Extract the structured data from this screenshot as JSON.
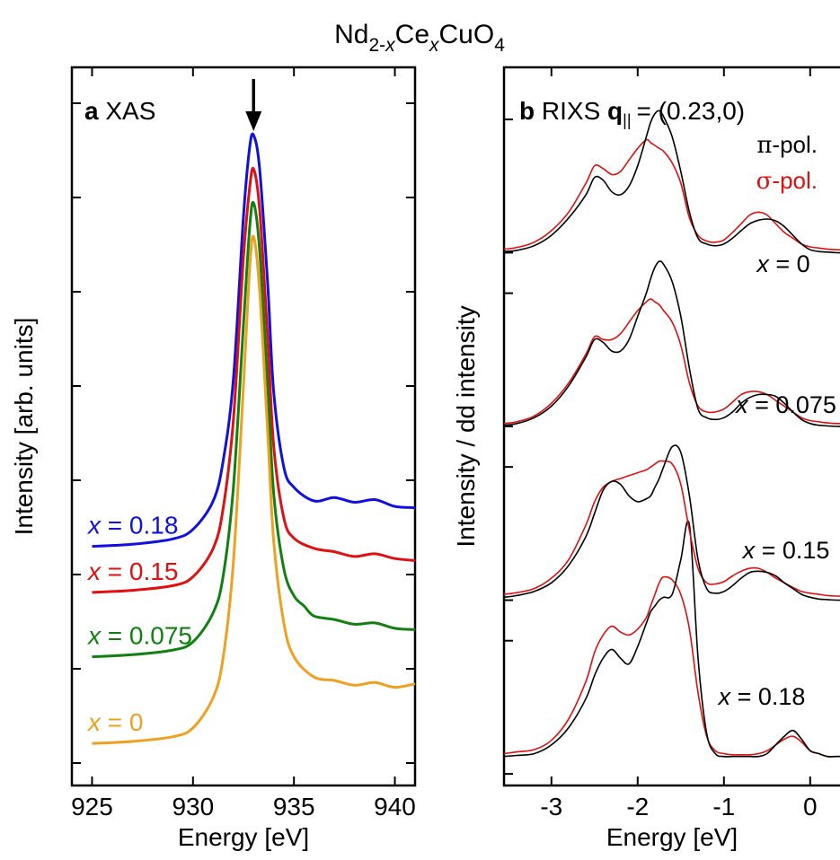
{
  "figure": {
    "title": {
      "base1": "Nd",
      "sub1": "2-",
      "subx": "x",
      "base2": "Ce",
      "sub2": "x",
      "base3": "CuO",
      "sub3": "4"
    }
  },
  "chart_data": [
    {
      "type": "line",
      "panel_letter": "a",
      "panel_title": "XAS",
      "xlabel": "Energy [eV]",
      "ylabel": "Intensity [arb. units]",
      "xlim": [
        924,
        941
      ],
      "ylim": [
        -0.6,
        10
      ],
      "xticks": [
        "925",
        "930",
        "935",
        "940"
      ],
      "xtick_values": [
        925,
        930,
        935,
        940
      ],
      "marker_arrow_x": 933,
      "grid": false,
      "legend": "curve labels at left",
      "series": [
        {
          "name": "x = 0.18",
          "var": "x",
          "eq": "= 0.18",
          "color": "#1010e0",
          "x": [
            925,
            927,
            929,
            930,
            931,
            931.5,
            932,
            932.5,
            932.8,
            933,
            933.3,
            933.7,
            934,
            934.5,
            935,
            936,
            937,
            938,
            939,
            940,
            941
          ],
          "y": [
            2.93,
            2.96,
            3.04,
            3.18,
            3.6,
            4.2,
            5.4,
            7.8,
            8.8,
            9.0,
            8.5,
            6.8,
            5.2,
            4.1,
            3.8,
            3.6,
            3.65,
            3.58,
            3.62,
            3.52,
            3.5
          ]
        },
        {
          "name": "x = 0.15",
          "var": "x",
          "eq": "= 0.15",
          "color": "#e01010",
          "x": [
            925,
            927,
            929,
            930,
            931,
            931.5,
            932,
            932.5,
            932.8,
            933,
            933.3,
            933.7,
            934,
            934.5,
            935,
            936,
            937,
            938,
            939,
            940,
            941
          ],
          "y": [
            2.25,
            2.28,
            2.35,
            2.48,
            2.9,
            3.5,
            4.8,
            7.2,
            8.2,
            8.5,
            7.9,
            6.0,
            4.4,
            3.35,
            3.05,
            2.9,
            2.85,
            2.78,
            2.82,
            2.75,
            2.72
          ]
        },
        {
          "name": "x = 0.075",
          "var": "x",
          "eq": "= 0.075",
          "color": "#108010",
          "x": [
            925,
            927,
            929,
            930,
            931,
            931.5,
            932,
            932.5,
            932.8,
            933,
            933.3,
            933.7,
            934,
            934.5,
            935,
            935.5,
            936,
            937,
            938,
            939,
            940,
            941
          ],
          "y": [
            1.3,
            1.33,
            1.4,
            1.52,
            1.95,
            2.5,
            3.8,
            6.2,
            7.6,
            8.0,
            7.3,
            5.3,
            3.7,
            2.6,
            2.2,
            2.05,
            1.9,
            1.85,
            1.78,
            1.8,
            1.72,
            1.7
          ]
        },
        {
          "name": "x = 0",
          "var": "x",
          "eq": "= 0",
          "color": "#f0a020",
          "x": [
            925,
            927,
            929,
            930,
            931,
            931.5,
            932,
            932.5,
            932.8,
            933,
            933.3,
            933.7,
            934,
            934.5,
            935,
            936,
            937,
            938,
            939,
            940,
            941
          ],
          "y": [
            0.02,
            0.05,
            0.12,
            0.25,
            0.7,
            1.3,
            2.7,
            5.3,
            7.0,
            7.5,
            6.7,
            4.6,
            3.0,
            1.8,
            1.3,
            1.0,
            0.95,
            0.88,
            0.92,
            0.85,
            0.9
          ]
        }
      ]
    },
    {
      "type": "line",
      "panel_letter": "b",
      "panel_title_prefix": "RIXS",
      "q_symbol": "q",
      "q_sub": "||",
      "q_value": "= (0.23,0)",
      "xlabel": "Energy [eV]",
      "ylabel": "Intensity / dd intensity",
      "xlim": [
        -3.55,
        0.45
      ],
      "ylim": [
        -0.2,
        12.2
      ],
      "xticks": [
        "-3",
        "-2",
        "-1",
        "0"
      ],
      "xtick_values": [
        -3,
        -2,
        -1,
        0
      ],
      "grid": false,
      "legend": "top-right",
      "legend_entries": [
        {
          "symbol": "π",
          "label": "-pol.",
          "color": "#000000"
        },
        {
          "symbol": "σ",
          "label": "-pol.",
          "color": "#e01010"
        }
      ],
      "x": [
        -3.55,
        -3.4,
        -3.2,
        -3.0,
        -2.8,
        -2.6,
        -2.5,
        -2.4,
        -2.3,
        -2.2,
        -2.1,
        -2.0,
        -1.9,
        -1.85,
        -1.8,
        -1.75,
        -1.7,
        -1.6,
        -1.5,
        -1.4,
        -1.3,
        -1.2,
        -1.1,
        -1.0,
        -0.9,
        -0.8,
        -0.7,
        -0.6,
        -0.5,
        -0.4,
        -0.3,
        -0.2,
        -0.1,
        0.0,
        0.1,
        0.2,
        0.3,
        0.45
      ],
      "series": [
        {
          "name": "x = 0.18",
          "var": "x",
          "eq": "= 0.18",
          "offset": 9.0,
          "pi_color": "#000000",
          "sigma_color": "#e01010",
          "pi": [
            0.02,
            0.04,
            0.12,
            0.3,
            0.6,
            1.0,
            1.3,
            1.25,
            1.05,
            1.0,
            1.15,
            1.5,
            2.0,
            2.25,
            2.4,
            2.45,
            2.35,
            2.0,
            1.4,
            0.7,
            0.25,
            0.15,
            0.12,
            0.15,
            0.25,
            0.38,
            0.5,
            0.56,
            0.58,
            0.55,
            0.45,
            0.3,
            0.15,
            0.05,
            0.02,
            0.01,
            0.0,
            0.0
          ],
          "sigma": [
            0.06,
            0.09,
            0.18,
            0.38,
            0.7,
            1.2,
            1.5,
            1.45,
            1.35,
            1.4,
            1.6,
            1.8,
            1.95,
            1.9,
            1.85,
            1.8,
            1.75,
            1.55,
            1.2,
            0.6,
            0.3,
            0.2,
            0.18,
            0.22,
            0.35,
            0.5,
            0.65,
            0.7,
            0.65,
            0.5,
            0.35,
            0.25,
            0.15,
            0.1,
            0.08,
            0.06,
            0.05,
            0.05
          ]
        },
        {
          "name": "x = 0.15",
          "var": "x",
          "eq": "= 0.15",
          "offset": 6.0,
          "pi_color": "#000000",
          "sigma_color": "#e01010",
          "pi": [
            0.02,
            0.05,
            0.15,
            0.35,
            0.7,
            1.2,
            1.5,
            1.45,
            1.3,
            1.3,
            1.5,
            1.9,
            2.3,
            2.55,
            2.75,
            2.85,
            2.8,
            2.5,
            1.9,
            1.0,
            0.3,
            0.15,
            0.12,
            0.15,
            0.25,
            0.4,
            0.5,
            0.55,
            0.55,
            0.52,
            0.4,
            0.25,
            0.12,
            0.05,
            0.02,
            0.01,
            0.0,
            0.0
          ],
          "sigma": [
            0.05,
            0.08,
            0.18,
            0.4,
            0.75,
            1.25,
            1.55,
            1.5,
            1.5,
            1.6,
            1.8,
            2.0,
            2.15,
            2.2,
            2.15,
            2.1,
            2.0,
            1.8,
            1.4,
            0.75,
            0.35,
            0.25,
            0.25,
            0.3,
            0.42,
            0.55,
            0.6,
            0.6,
            0.55,
            0.45,
            0.35,
            0.25,
            0.15,
            0.1,
            0.08,
            0.06,
            0.05,
            0.05
          ]
        },
        {
          "name": "x = 0.075",
          "var": "x",
          "eq": "= 0.075",
          "offset": 3.0,
          "pi_color": "#000000",
          "sigma_color": "#e01010",
          "pi": [
            0.05,
            0.08,
            0.15,
            0.3,
            0.6,
            1.1,
            1.5,
            1.9,
            2.05,
            2.0,
            1.8,
            1.7,
            1.75,
            1.8,
            1.95,
            2.1,
            2.3,
            2.65,
            2.55,
            1.8,
            0.7,
            0.2,
            0.12,
            0.15,
            0.25,
            0.38,
            0.48,
            0.5,
            0.48,
            0.42,
            0.3,
            0.2,
            0.1,
            0.05,
            0.02,
            0.01,
            0.0,
            0.0
          ],
          "sigma": [
            0.1,
            0.13,
            0.2,
            0.38,
            0.7,
            1.3,
            1.7,
            1.95,
            2.05,
            2.1,
            2.15,
            2.2,
            2.25,
            2.3,
            2.35,
            2.4,
            2.4,
            2.35,
            2.0,
            1.2,
            0.55,
            0.3,
            0.28,
            0.32,
            0.42,
            0.5,
            0.55,
            0.55,
            0.48,
            0.38,
            0.3,
            0.22,
            0.15,
            0.12,
            0.1,
            0.08,
            0.07,
            0.07
          ]
        },
        {
          "name": "x = 0",
          "var": "x",
          "eq": "= 0",
          "offset": 0.0,
          "pi_color": "#000000",
          "sigma_color": "#e01010",
          "pi": [
            0.3,
            0.32,
            0.35,
            0.5,
            0.8,
            1.3,
            1.7,
            2.0,
            2.15,
            2.0,
            1.9,
            2.2,
            2.6,
            2.8,
            2.9,
            3.0,
            3.05,
            3.1,
            3.7,
            4.3,
            2.0,
            0.7,
            0.35,
            0.3,
            0.3,
            0.3,
            0.3,
            0.3,
            0.35,
            0.5,
            0.65,
            0.75,
            0.6,
            0.4,
            0.35,
            0.3,
            0.3,
            0.3
          ],
          "sigma": [
            0.35,
            0.38,
            0.42,
            0.58,
            0.95,
            1.6,
            2.1,
            2.4,
            2.55,
            2.45,
            2.4,
            2.5,
            2.7,
            2.9,
            3.1,
            3.3,
            3.4,
            3.35,
            3.1,
            2.5,
            1.4,
            0.65,
            0.4,
            0.35,
            0.33,
            0.33,
            0.33,
            0.35,
            0.4,
            0.5,
            0.6,
            0.65,
            0.55,
            0.4,
            0.35,
            0.3,
            0.3,
            0.3
          ]
        }
      ]
    }
  ]
}
